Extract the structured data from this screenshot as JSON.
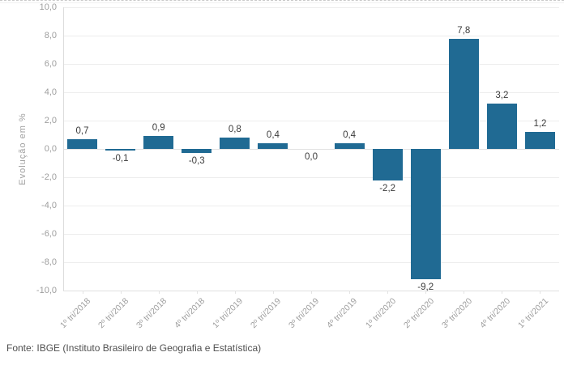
{
  "chart": {
    "y_axis_title": "Evolução em %",
    "y_ticks": [
      "10,0",
      "8,0",
      "6,0",
      "4,0",
      "2,0",
      "0,0",
      "-2,0",
      "-4,0",
      "-6,0",
      "-8,0",
      "-10,0"
    ],
    "bar_color": "#206a93",
    "source": "Fonte: IBGE (Instituto Brasileiro de Geografia e Estatística)"
  },
  "chart_data": {
    "type": "bar",
    "categories": [
      "1º tri/2018",
      "2º tri/2018",
      "3º tri/2018",
      "4º tri/2018",
      "1º tri/2019",
      "2º tri/2019",
      "3º tri/2019",
      "4º tri/2019",
      "1º tri/2020",
      "2º tri/2020",
      "3º tri/2020",
      "4º tri/2020",
      "1º tri/2021"
    ],
    "values": [
      0.7,
      -0.1,
      0.9,
      -0.3,
      0.8,
      0.4,
      0.0,
      0.4,
      -2.2,
      -9.2,
      7.8,
      3.2,
      1.2
    ],
    "value_labels": [
      "0,7",
      "-0,1",
      "0,9",
      "-0,3",
      "0,8",
      "0,4",
      "0,0",
      "0,4",
      "-2,2",
      "-9,2",
      "7,8",
      "3,2",
      "1,2"
    ],
    "title": "",
    "xlabel": "",
    "ylabel": "Evolução em %",
    "ylim": [
      -10,
      10
    ],
    "ytick_step": 2,
    "grid": true,
    "legend": false
  }
}
